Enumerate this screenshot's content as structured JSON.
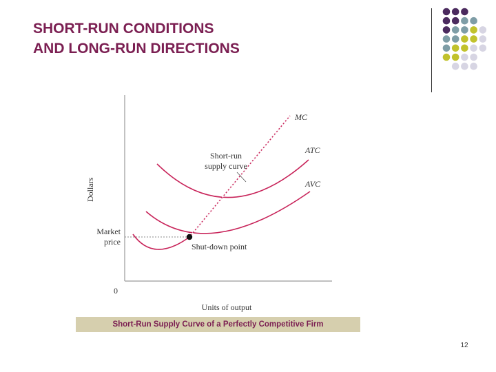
{
  "slide": {
    "title_line1": "SHORT-RUN CONDITIONS",
    "title_line2": "AND LONG-RUN DIRECTIONS",
    "page_number": "12",
    "title_color": "#7b1f52",
    "accent_colors": [
      "#4b2a5e",
      "#7e9da6",
      "#c1c22c",
      "#d7d5e3"
    ]
  },
  "diagram": {
    "y_axis_label": "Dollars",
    "x_axis_label": "Units of output",
    "origin_label": "0",
    "market_price_label_line1": "Market",
    "market_price_label_line2": "price",
    "curves": {
      "mc": "MC",
      "atc": "ATC",
      "avc": "AVC"
    },
    "short_run_supply_line1": "Short-run",
    "short_run_supply_line2": "supply curve",
    "shutdown_point_label": "Shut-down point",
    "curve_color": "#c8245a",
    "caption": "Short-Run Supply Curve of a Perfectly Competitive Firm",
    "caption_bg": "#d6cfae"
  }
}
